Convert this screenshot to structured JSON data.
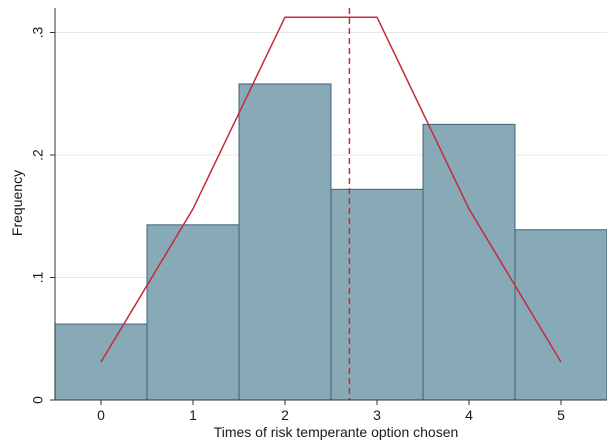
{
  "chart_data": {
    "type": "bar",
    "xlabel": "Times of risk temperante option chosen",
    "ylabel": "Frequency",
    "xlim": [
      -0.5,
      5.5
    ],
    "ylim": [
      0,
      0.32
    ],
    "x_ticks": [
      "0",
      "1",
      "2",
      "3",
      "4",
      "5"
    ],
    "y_ticks": [
      "0",
      ".1",
      ".2",
      ".3"
    ],
    "categories": [
      0,
      1,
      2,
      3,
      4,
      5
    ],
    "values": [
      0.062,
      0.143,
      0.258,
      0.172,
      0.225,
      0.139
    ],
    "reference_curve": {
      "x": [
        0,
        1,
        2,
        3,
        4,
        5
      ],
      "y": [
        0.031,
        0.156,
        0.3125,
        0.3125,
        0.156,
        0.031
      ]
    },
    "vertical_line_x": 2.7,
    "grid": true,
    "colors": {
      "bar_fill": "#87aab6",
      "bar_stroke": "#3f6373",
      "curve": "#c42a3e",
      "vline": "#c42a3e",
      "grid": "#e8e8e8",
      "axis": "#333333"
    }
  }
}
